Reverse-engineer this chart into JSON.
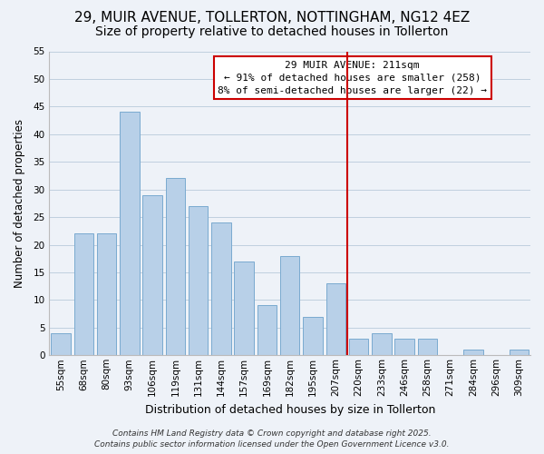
{
  "title": "29, MUIR AVENUE, TOLLERTON, NOTTINGHAM, NG12 4EZ",
  "subtitle": "Size of property relative to detached houses in Tollerton",
  "xlabel": "Distribution of detached houses by size in Tollerton",
  "ylabel": "Number of detached properties",
  "categories": [
    "55sqm",
    "68sqm",
    "80sqm",
    "93sqm",
    "106sqm",
    "119sqm",
    "131sqm",
    "144sqm",
    "157sqm",
    "169sqm",
    "182sqm",
    "195sqm",
    "207sqm",
    "220sqm",
    "233sqm",
    "246sqm",
    "258sqm",
    "271sqm",
    "284sqm",
    "296sqm",
    "309sqm"
  ],
  "values": [
    4,
    22,
    22,
    44,
    29,
    32,
    27,
    24,
    17,
    9,
    18,
    7,
    13,
    3,
    4,
    3,
    3,
    0,
    1,
    0,
    1
  ],
  "bar_color": "#b8d0e8",
  "bar_edge_color": "#7aaad0",
  "grid_color": "#c0cfdf",
  "background_color": "#eef2f8",
  "vline_x": 12.5,
  "vline_color": "#cc0000",
  "annotation_title": "29 MUIR AVENUE: 211sqm",
  "annotation_line1": "← 91% of detached houses are smaller (258)",
  "annotation_line2": "8% of semi-detached houses are larger (22) →",
  "annotation_bg": "#ffffff",
  "annotation_border_color": "#cc0000",
  "footnote1": "Contains HM Land Registry data © Crown copyright and database right 2025.",
  "footnote2": "Contains public sector information licensed under the Open Government Licence v3.0.",
  "ylim": [
    0,
    55
  ],
  "yticks": [
    0,
    5,
    10,
    15,
    20,
    25,
    30,
    35,
    40,
    45,
    50,
    55
  ],
  "title_fontsize": 11,
  "subtitle_fontsize": 10,
  "xlabel_fontsize": 9,
  "ylabel_fontsize": 8.5,
  "tick_fontsize": 7.5,
  "annotation_fontsize": 8,
  "footnote_fontsize": 6.5
}
